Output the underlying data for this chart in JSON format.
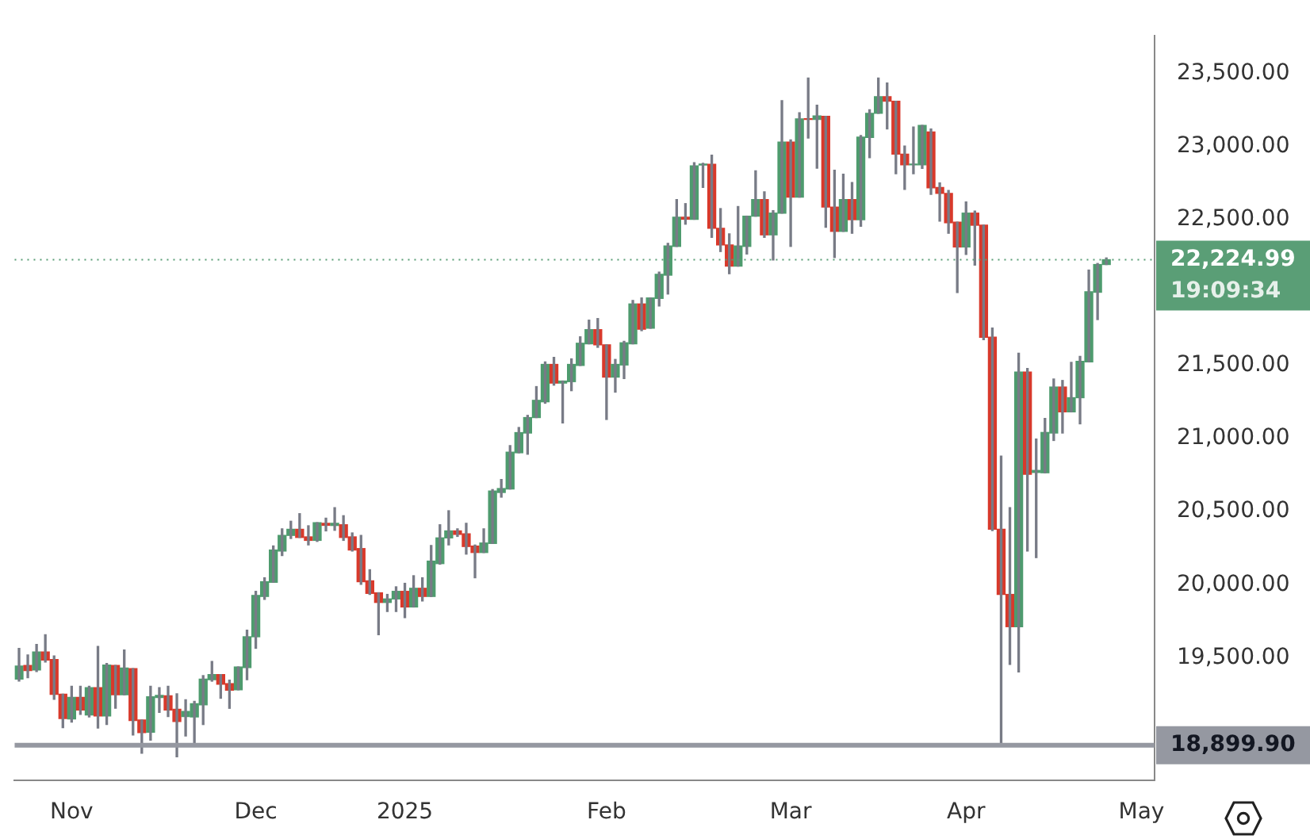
{
  "chart_data": {
    "type": "candlestick",
    "categories": [
      null,
      null,
      null,
      null,
      null,
      null,
      "Nov",
      null,
      null,
      null,
      null,
      null,
      null,
      null,
      null,
      null,
      null,
      null,
      null,
      null,
      null,
      null,
      null,
      null,
      null,
      null,
      null,
      "Dec",
      null,
      null,
      null,
      null,
      null,
      null,
      null,
      null,
      null,
      null,
      null,
      null,
      null,
      null,
      null,
      null,
      "2025",
      null,
      null,
      null,
      null,
      null,
      null,
      null,
      null,
      null,
      null,
      null,
      null,
      null,
      null,
      null,
      null,
      null,
      null,
      null,
      null,
      null,
      null,
      "Feb",
      null,
      null,
      null,
      null,
      null,
      null,
      null,
      null,
      null,
      null,
      null,
      null,
      null,
      null,
      null,
      null,
      null,
      null,
      null,
      null,
      "Mar",
      null,
      null,
      null,
      null,
      null,
      null,
      null,
      null,
      null,
      null,
      null,
      null,
      null,
      null,
      null,
      null,
      null,
      null,
      null,
      "Apr",
      null,
      null,
      null,
      null,
      null,
      null,
      null,
      null,
      null,
      null,
      null,
      null,
      null,
      null,
      null,
      null,
      null,
      null,
      null,
      "May",
      null
    ],
    "ohlc": [
      [
        19353,
        19563,
        19340,
        19442
      ],
      [
        19446,
        19519,
        19363,
        19412
      ],
      [
        19415,
        19591,
        19405,
        19539
      ],
      [
        19539,
        19657,
        19470,
        19484
      ],
      [
        19487,
        19512,
        19215,
        19249
      ],
      [
        19249,
        19249,
        19021,
        19083
      ],
      [
        19080,
        19304,
        19059,
        19228
      ],
      [
        19228,
        19304,
        19111,
        19142
      ],
      [
        19108,
        19304,
        19094,
        19294
      ],
      [
        19294,
        19577,
        19018,
        19101
      ],
      [
        19101,
        19460,
        19042,
        19449
      ],
      [
        19446,
        19446,
        19153,
        19246
      ],
      [
        19246,
        19553,
        19246,
        19429
      ],
      [
        19425,
        19425,
        18970,
        19070
      ],
      [
        19073,
        19073,
        18845,
        18987
      ],
      [
        18990,
        19304,
        18935,
        19232
      ],
      [
        19227,
        19294,
        19125,
        19242
      ],
      [
        19239,
        19304,
        19097,
        19142
      ],
      [
        19146,
        19253,
        18821,
        19063
      ],
      [
        19097,
        19211,
        18963,
        19132
      ],
      [
        19094,
        19201,
        18904,
        19184
      ],
      [
        19177,
        19377,
        19042,
        19353
      ],
      [
        19349,
        19474,
        19339,
        19384
      ],
      [
        19384,
        19384,
        19222,
        19318
      ],
      [
        19322,
        19346,
        19153,
        19277
      ],
      [
        19280,
        19436,
        19280,
        19436
      ],
      [
        19432,
        19688,
        19349,
        19643
      ],
      [
        19643,
        19954,
        19564,
        19926
      ],
      [
        19919,
        20047,
        19899,
        20020
      ],
      [
        20016,
        20265,
        20016,
        20237
      ],
      [
        20230,
        20382,
        20199,
        20337
      ],
      [
        20337,
        20434,
        20316,
        20379
      ],
      [
        20379,
        20486,
        20323,
        20323
      ],
      [
        20327,
        20403,
        20272,
        20303
      ],
      [
        20303,
        20424,
        20296,
        20424
      ],
      [
        20420,
        20455,
        20368,
        20406
      ],
      [
        20405,
        20527,
        20372,
        20420
      ],
      [
        20410,
        20472,
        20303,
        20323
      ],
      [
        20327,
        20354,
        20230,
        20237
      ],
      [
        20247,
        20337,
        20002,
        20020
      ],
      [
        20026,
        20102,
        19933,
        19940
      ],
      [
        19944,
        19944,
        19657,
        19878
      ],
      [
        19878,
        19933,
        19816,
        19902
      ],
      [
        19902,
        19985,
        19816,
        19954
      ],
      [
        19954,
        20009,
        19774,
        19847
      ],
      [
        19847,
        20061,
        19847,
        19975
      ],
      [
        19975,
        20047,
        19888,
        19919
      ],
      [
        19919,
        20268,
        19919,
        20161
      ],
      [
        20144,
        20410,
        20140,
        20320
      ],
      [
        20320,
        20506,
        20272,
        20368
      ],
      [
        20368,
        20382,
        20330,
        20344
      ],
      [
        20348,
        20420,
        20209,
        20261
      ],
      [
        20264,
        20271,
        20047,
        20220
      ],
      [
        20220,
        20382,
        20220,
        20285
      ],
      [
        20282,
        20651,
        20282,
        20641
      ],
      [
        20631,
        20720,
        20599,
        20658
      ],
      [
        20655,
        20952,
        20655,
        20907
      ],
      [
        20903,
        21076,
        20903,
        21041
      ],
      [
        21038,
        21159,
        20893,
        21144
      ],
      [
        21144,
        21356,
        21144,
        21262
      ],
      [
        21252,
        21525,
        21242,
        21508
      ],
      [
        21508,
        21556,
        21366,
        21380
      ],
      [
        21380,
        21394,
        21107,
        21394
      ],
      [
        21390,
        21546,
        21328,
        21508
      ],
      [
        21501,
        21697,
        21501,
        21653
      ],
      [
        21649,
        21811,
        21649,
        21746
      ],
      [
        21746,
        21822,
        21625,
        21642
      ],
      [
        21642,
        21642,
        21131,
        21421
      ],
      [
        21421,
        21542,
        21318,
        21508
      ],
      [
        21504,
        21666,
        21411,
        21656
      ],
      [
        21649,
        21946,
        21649,
        21922
      ],
      [
        21922,
        21963,
        21739,
        21749
      ],
      [
        21756,
        21963,
        21756,
        21963
      ],
      [
        21960,
        22140,
        21908,
        22125
      ],
      [
        22119,
        22337,
        21990,
        22319
      ],
      [
        22316,
        22637,
        22316,
        22516
      ],
      [
        22516,
        22609,
        22468,
        22502
      ],
      [
        22502,
        22889,
        22502,
        22868
      ],
      [
        22873,
        22885,
        22720,
        22880
      ],
      [
        22879,
        22941,
        22378,
        22440
      ],
      [
        22440,
        22575,
        22281,
        22326
      ],
      [
        22326,
        22402,
        22129,
        22181
      ],
      [
        22181,
        22589,
        22181,
        22319
      ],
      [
        22316,
        22523,
        22264,
        22523
      ],
      [
        22523,
        22834,
        22523,
        22637
      ],
      [
        22637,
        22689,
        22378,
        22395
      ],
      [
        22395,
        22561,
        22223,
        22544
      ],
      [
        22544,
        23314,
        22544,
        23031
      ],
      [
        23031,
        23045,
        22316,
        22654
      ],
      [
        22654,
        23231,
        22654,
        23189
      ],
      [
        23190,
        23469,
        23058,
        23185
      ],
      [
        23186,
        23283,
        22851,
        23210
      ],
      [
        23207,
        23207,
        22447,
        22585
      ],
      [
        22585,
        22837,
        22240,
        22419
      ],
      [
        22419,
        22810,
        22419,
        22637
      ],
      [
        22637,
        22754,
        22406,
        22499
      ],
      [
        22499,
        23075,
        22454,
        23065
      ],
      [
        23062,
        23252,
        22924,
        23227
      ],
      [
        23227,
        23469,
        23227,
        23341
      ],
      [
        23341,
        23435,
        23120,
        23310
      ],
      [
        23310,
        23310,
        22813,
        22948
      ],
      [
        22948,
        23003,
        22706,
        22875
      ],
      [
        22875,
        23134,
        22813,
        22880
      ],
      [
        22875,
        23145,
        22850,
        23145
      ],
      [
        23100,
        23120,
        22672,
        22717
      ],
      [
        22720,
        22751,
        22489,
        22679
      ],
      [
        22679,
        22699,
        22406,
        22478
      ],
      [
        22482,
        22482,
        22000,
        22312
      ],
      [
        22312,
        22620,
        22261,
        22544
      ],
      [
        22544,
        22558,
        22188,
        22461
      ],
      [
        22461,
        22461,
        21677,
        21694
      ],
      [
        21694,
        21757,
        20370,
        20379
      ],
      [
        20379,
        20880,
        18899.9,
        19933
      ],
      [
        19933,
        20527,
        19453,
        19712
      ],
      [
        19712,
        21584,
        19402,
        21456
      ],
      [
        21456,
        21480,
        20230,
        20755
      ],
      [
        20768,
        20997,
        20185,
        20782
      ],
      [
        20766,
        21138,
        20766,
        21042
      ],
      [
        21038,
        21408,
        20987,
        21353
      ],
      [
        21353,
        21398,
        21038,
        21183
      ],
      [
        21183,
        21522,
        21183,
        21280
      ],
      [
        21280,
        21563,
        21101,
        21529
      ],
      [
        21525,
        22154,
        21525,
        22005
      ],
      [
        22002,
        22199,
        21815,
        22192
      ],
      [
        22192,
        22237,
        22192,
        22224.99
      ],
      null,
      null,
      null,
      null,
      null
    ],
    "colors": [
      "#4e9b6e",
      "#d8392b",
      "#4e9b6e",
      "#d8392b",
      "#d8392b",
      "#d8392b",
      "#4e9b6e",
      "#d8392b",
      "#4e9b6e",
      "#d8392b",
      "#4e9b6e",
      "#d8392b",
      "#4e9b6e",
      "#d8392b",
      "#d8392b",
      "#4e9b6e",
      "#4e9b6e",
      "#d8392b",
      "#d8392b",
      "#4e9b6e",
      "#4e9b6e",
      "#4e9b6e",
      "#4e9b6e",
      "#d8392b",
      "#d8392b",
      "#4e9b6e",
      "#4e9b6e",
      "#4e9b6e",
      "#4e9b6e",
      "#4e9b6e",
      "#4e9b6e",
      "#4e9b6e",
      "#d8392b",
      "#d8392b",
      "#4e9b6e",
      "#d8392b",
      "#4e9b6e",
      "#d8392b",
      "#d8392b",
      "#d8392b",
      "#d8392b",
      "#d8392b",
      "#4e9b6e",
      "#4e9b6e",
      "#d8392b",
      "#4e9b6e",
      "#d8392b",
      "#4e9b6e",
      "#4e9b6e",
      "#4e9b6e",
      "#d8392b",
      "#d8392b",
      "#d8392b",
      "#4e9b6e",
      "#4e9b6e",
      "#4e9b6e",
      "#4e9b6e",
      "#4e9b6e",
      "#4e9b6e",
      "#4e9b6e",
      "#4e9b6e",
      "#d8392b",
      "#4e9b6e",
      "#4e9b6e",
      "#4e9b6e",
      "#4e9b6e",
      "#d8392b",
      "#d8392b",
      "#4e9b6e",
      "#4e9b6e",
      "#4e9b6e",
      "#d8392b",
      "#4e9b6e",
      "#4e9b6e",
      "#4e9b6e",
      "#4e9b6e",
      "#d8392b",
      "#4e9b6e",
      "#4e9b6e",
      "#d8392b",
      "#d8392b",
      "#d8392b",
      "#4e9b6e",
      "#4e9b6e",
      "#4e9b6e",
      "#d8392b",
      "#4e9b6e",
      "#4e9b6e",
      "#d8392b",
      "#4e9b6e",
      "#d8392b",
      "#4e9b6e",
      "#d8392b",
      "#d8392b",
      "#4e9b6e",
      "#d8392b",
      "#4e9b6e",
      "#4e9b6e",
      "#4e9b6e",
      "#d8392b",
      "#d8392b",
      "#d8392b",
      "#4e9b6e",
      "#4e9b6e",
      "#d8392b",
      "#d8392b",
      "#d8392b",
      "#d8392b",
      "#4e9b6e",
      "#d8392b",
      "#d8392b",
      "#d8392b",
      "#d8392b",
      "#d8392b",
      "#4e9b6e",
      "#d8392b",
      "#4e9b6e",
      "#4e9b6e",
      "#4e9b6e",
      "#d8392b",
      "#4e9b6e",
      "#4e9b6e",
      "#4e9b6e",
      "#4e9b6e",
      "#4e9b6e",
      null,
      null,
      null,
      null,
      null
    ],
    "ylim": [
      18660,
      23760
    ],
    "yticks": [
      {
        "value": 19500,
        "label": "19,500.00"
      },
      {
        "value": 20000,
        "label": "20,000.00"
      },
      {
        "value": 20500,
        "label": "20,500.00"
      },
      {
        "value": 21000,
        "label": "21,000.00"
      },
      {
        "value": 21500,
        "label": "21,500.00"
      },
      {
        "value": 22500,
        "label": "22,500.00"
      },
      {
        "value": 23000,
        "label": "23,000.00"
      },
      {
        "value": 23500,
        "label": "23,500.00"
      }
    ],
    "ref_lines": [
      {
        "axis": "y",
        "value": 22224.99,
        "label": "22,224.99",
        "color": "#5a9e76",
        "line_style": "dotted"
      },
      {
        "axis": "y",
        "value": 18899.9,
        "label": "18,899.90",
        "color": "#9598a1",
        "line_style": "solid"
      }
    ],
    "annotations": [
      "19:09:34"
    ]
  }
}
